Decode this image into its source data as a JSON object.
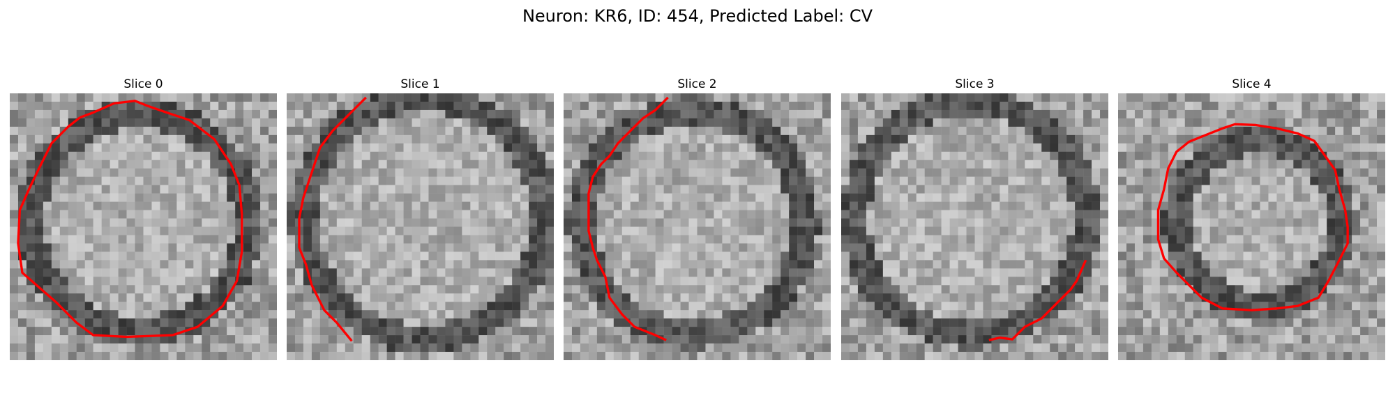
{
  "figure": {
    "title": "Neuron: KR6, ID: 454, Predicted Label: CV"
  },
  "contour_color": "#ff0000",
  "grid_size": 32,
  "slices": [
    {
      "title": "Slice 0",
      "cell_center": [
        15.5,
        15.5
      ],
      "cell_radius": 13.2,
      "contour": [
        [
          8.4,
          2.9
        ],
        [
          10.0,
          2.3
        ],
        [
          12.5,
          1.2
        ],
        [
          15.0,
          0.9
        ],
        [
          16.5,
          1.5
        ],
        [
          18.5,
          2.2
        ],
        [
          21.5,
          3.2
        ],
        [
          24.5,
          5.5
        ],
        [
          26.5,
          8.5
        ],
        [
          27.5,
          11.0
        ],
        [
          27.8,
          14.5
        ],
        [
          27.8,
          19.0
        ],
        [
          27.2,
          22.5
        ],
        [
          25.5,
          25.5
        ],
        [
          22.5,
          28.0
        ],
        [
          19.5,
          29.0
        ],
        [
          14.0,
          29.2
        ],
        [
          10.0,
          29.0
        ],
        [
          8.0,
          27.5
        ],
        [
          5.5,
          25.0
        ],
        [
          3.2,
          23.0
        ],
        [
          1.5,
          21.5
        ],
        [
          1.0,
          18.0
        ],
        [
          1.2,
          14.0
        ],
        [
          2.3,
          11.5
        ],
        [
          3.5,
          9.0
        ],
        [
          5.0,
          6.0
        ],
        [
          7.0,
          4.0
        ],
        [
          8.4,
          2.9
        ]
      ]
    },
    {
      "title": "Slice 1",
      "cell_center": [
        16.5,
        15.0
      ],
      "cell_radius": 14.5,
      "contour": [
        [
          9.5,
          0.5
        ],
        [
          7.5,
          2.5
        ],
        [
          5.5,
          4.5
        ],
        [
          4.0,
          6.5
        ],
        [
          3.0,
          9.5
        ],
        [
          2.0,
          12.5
        ],
        [
          1.5,
          15.0
        ],
        [
          1.5,
          18.5
        ],
        [
          2.3,
          20.5
        ],
        [
          3.0,
          23.0
        ],
        [
          4.5,
          26.0
        ],
        [
          6.0,
          27.5
        ],
        [
          7.8,
          29.7
        ]
      ]
    },
    {
      "title": "Slice 2",
      "cell_center": [
        15.5,
        15.5
      ],
      "cell_radius": 13.5,
      "contour": [
        [
          12.5,
          0.5
        ],
        [
          11.0,
          2.0
        ],
        [
          9.5,
          3.0
        ],
        [
          8.0,
          4.5
        ],
        [
          6.5,
          6.0
        ],
        [
          5.5,
          7.5
        ],
        [
          4.5,
          8.5
        ],
        [
          3.5,
          10.0
        ],
        [
          3.0,
          12.0
        ],
        [
          3.0,
          14.5
        ],
        [
          3.0,
          16.5
        ],
        [
          3.5,
          18.5
        ],
        [
          4.0,
          20.0
        ],
        [
          5.0,
          22.0
        ],
        [
          5.5,
          24.5
        ],
        [
          7.0,
          26.5
        ],
        [
          8.5,
          28.0
        ],
        [
          11.0,
          29.0
        ],
        [
          12.3,
          29.6
        ]
      ]
    },
    {
      "title": "Slice 3",
      "cell_center": [
        15.5,
        15.0
      ],
      "cell_radius": 14.0,
      "contour": [
        [
          29.3,
          20.0
        ],
        [
          28.2,
          22.5
        ],
        [
          27.5,
          23.5
        ],
        [
          26.0,
          25.0
        ],
        [
          24.0,
          27.0
        ],
        [
          22.0,
          28.0
        ],
        [
          20.5,
          29.5
        ],
        [
          19.0,
          29.3
        ],
        [
          17.7,
          29.6
        ]
      ]
    },
    {
      "title": "Slice 4",
      "cell_center": [
        17.0,
        15.5
      ],
      "cell_radius": 10.0,
      "contour": [
        [
          12.5,
          4.2
        ],
        [
          14.0,
          3.7
        ],
        [
          16.5,
          3.8
        ],
        [
          19.0,
          4.2
        ],
        [
          21.5,
          4.8
        ],
        [
          23.5,
          5.7
        ],
        [
          24.8,
          7.5
        ],
        [
          26.0,
          9.2
        ],
        [
          26.5,
          11.5
        ],
        [
          27.2,
          14.0
        ],
        [
          27.5,
          16.0
        ],
        [
          27.5,
          18.0
        ],
        [
          26.5,
          20.0
        ],
        [
          25.2,
          22.5
        ],
        [
          24.0,
          24.5
        ],
        [
          21.5,
          25.5
        ],
        [
          19.0,
          25.8
        ],
        [
          16.0,
          26.0
        ],
        [
          12.5,
          25.8
        ],
        [
          10.0,
          24.5
        ],
        [
          8.5,
          23.0
        ],
        [
          7.0,
          21.5
        ],
        [
          5.5,
          19.8
        ],
        [
          4.8,
          17.5
        ],
        [
          4.8,
          14.0
        ],
        [
          5.5,
          11.5
        ],
        [
          6.0,
          9.0
        ],
        [
          7.0,
          7.0
        ],
        [
          8.5,
          5.8
        ],
        [
          10.5,
          5.0
        ],
        [
          12.5,
          4.2
        ]
      ]
    }
  ]
}
